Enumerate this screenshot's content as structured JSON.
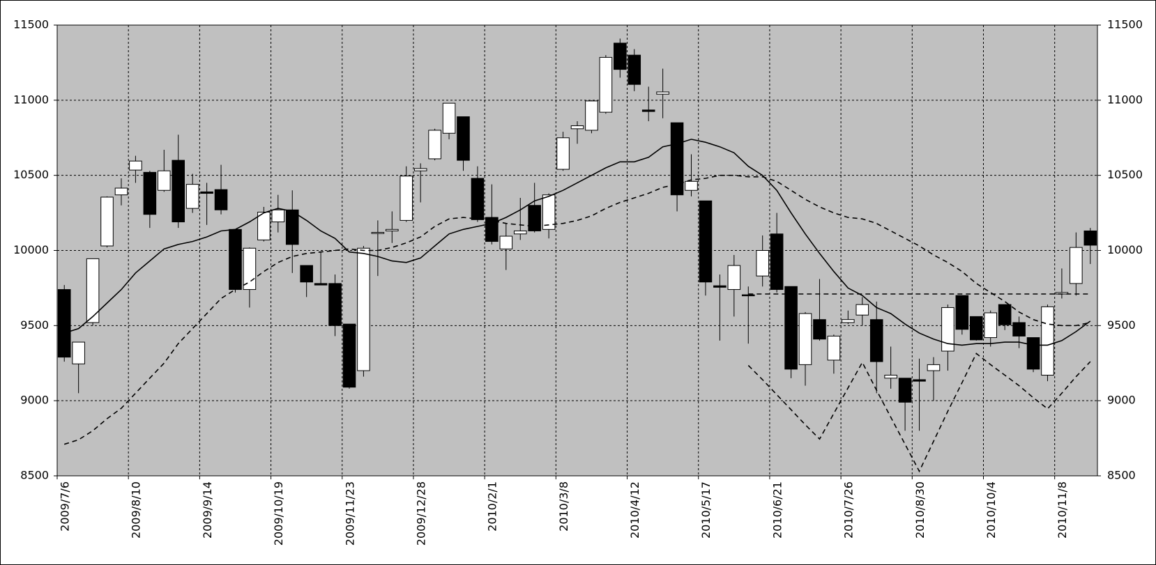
{
  "chart_data": {
    "type": "candlestick",
    "categories": [
      "2009/7/6",
      null,
      null,
      null,
      null,
      "2009/8/10",
      null,
      null,
      null,
      null,
      "2009/9/14",
      null,
      null,
      null,
      null,
      "2009/10/19",
      null,
      null,
      null,
      null,
      "2009/11/23",
      null,
      null,
      null,
      null,
      "2009/12/28",
      null,
      null,
      null,
      null,
      "2010/2/1",
      null,
      null,
      null,
      null,
      "2010/3/8",
      null,
      null,
      null,
      null,
      "2010/4/12",
      null,
      null,
      null,
      null,
      "2010/5/17",
      null,
      null,
      null,
      null,
      "2010/6/21",
      null,
      null,
      null,
      null,
      "2010/7/26",
      null,
      null,
      null,
      null,
      "2010/8/30",
      null,
      null,
      null,
      null,
      "2010/10/4",
      null,
      null,
      null,
      null,
      "2010/11/8",
      null,
      null
    ],
    "open": [
      9740,
      9245,
      9520,
      10030,
      10370,
      10535,
      10520,
      10400,
      10600,
      10280,
      10390,
      10405,
      10140,
      9740,
      10070,
      10190,
      10270,
      9900,
      9780,
      9780,
      9510,
      9200,
      10115,
      10130,
      10200,
      10530,
      10610,
      10780,
      10890,
      10480,
      10220,
      10010,
      10110,
      10300,
      10140,
      10540,
      10810,
      10800,
      10920,
      11380,
      11300,
      10935,
      11040,
      10850,
      10400,
      10330,
      9765,
      9740,
      9705,
      9830,
      10110,
      9760,
      9240,
      9540,
      9270,
      9520,
      9570,
      9540,
      9150,
      9150,
      9140,
      9200,
      9330,
      9700,
      9560,
      9420,
      9640,
      9520,
      9420,
      9170,
      9710,
      9780,
      10130
    ],
    "high": [
      9770,
      9390,
      9945,
      10360,
      10480,
      10630,
      10530,
      10670,
      10770,
      10510,
      10450,
      10570,
      10140,
      10020,
      10290,
      10370,
      10400,
      9900,
      9990,
      9840,
      9510,
      10030,
      10200,
      10260,
      10560,
      10580,
      10810,
      10980,
      10890,
      10560,
      10440,
      10180,
      10350,
      10450,
      10380,
      10790,
      10860,
      11000,
      11300,
      11410,
      11340,
      11090,
      11210,
      10850,
      10640,
      10330,
      9840,
      9970,
      9760,
      10100,
      10250,
      9760,
      9590,
      9810,
      9440,
      9600,
      9690,
      9660,
      9360,
      9150,
      9280,
      9290,
      9640,
      9700,
      9560,
      9600,
      9640,
      9560,
      9420,
      9640,
      9880,
      10120,
      10150
    ],
    "low": [
      9260,
      9050,
      9500,
      10020,
      10300,
      10450,
      10150,
      10390,
      10150,
      10250,
      10170,
      10240,
      9720,
      9620,
      10060,
      10120,
      9850,
      9690,
      9770,
      9430,
      9080,
      9160,
      9830,
      10050,
      10190,
      10320,
      10600,
      10740,
      10530,
      10190,
      10040,
      9870,
      10070,
      10120,
      10080,
      10530,
      10710,
      10780,
      10910,
      11150,
      11060,
      10860,
      10880,
      10260,
      10360,
      9700,
      9400,
      9560,
      9380,
      9760,
      9720,
      9150,
      9100,
      9400,
      9180,
      9510,
      9500,
      9050,
      9080,
      8800,
      8800,
      9000,
      9200,
      9440,
      9400,
      9360,
      9470,
      9350,
      9190,
      9130,
      9680,
      9700,
      9910
    ],
    "close": [
      9290,
      9390,
      9945,
      10355,
      10415,
      10595,
      10240,
      10530,
      10190,
      10440,
      10380,
      10270,
      9740,
      10015,
      10255,
      10270,
      10040,
      9790,
      9770,
      9500,
      9090,
      10015,
      10120,
      10140,
      10495,
      10545,
      10800,
      10980,
      10600,
      10205,
      10060,
      10095,
      10130,
      10130,
      10370,
      10750,
      10830,
      10995,
      11285,
      11205,
      11105,
      10925,
      11055,
      10370,
      10460,
      9790,
      9755,
      9900,
      9700,
      10000,
      9740,
      9210,
      9580,
      9410,
      9430,
      9540,
      9640,
      9260,
      9170,
      8990,
      9130,
      9240,
      9620,
      9475,
      9405,
      9585,
      9505,
      9430,
      9210,
      9625,
      9720,
      10020,
      10035
    ],
    "up_color": "#ffffff",
    "down_color": "#000000",
    "plot_background": "#c0c0c0",
    "lines": [
      {
        "color": "#000000",
        "dashed": false,
        "values": [
          9450,
          9480,
          9560,
          9650,
          9740,
          9850,
          9930,
          10010,
          10040,
          10060,
          10090,
          10130,
          10140,
          10190,
          10250,
          10280,
          10260,
          10200,
          10130,
          10080,
          9990,
          9980,
          9960,
          9930,
          9920,
          9950,
          10030,
          10110,
          10140,
          10160,
          10180,
          10220,
          10270,
          10330,
          10360,
          10400,
          10450,
          10500,
          10550,
          10590,
          10590,
          10620,
          10690,
          10710,
          10740,
          10720,
          10690,
          10650,
          10560,
          10500,
          10400,
          10250,
          10110,
          9980,
          9860,
          9750,
          9700,
          9620,
          9580,
          9510,
          9450,
          9410,
          9380,
          9370,
          9380,
          9380,
          9390,
          9390,
          9370,
          9370,
          9400,
          9460,
          9530
        ]
      },
      {
        "color": "#000000",
        "dashed": true,
        "values": [
          8710,
          8740,
          8800,
          8880,
          8950,
          9050,
          9150,
          9250,
          9380,
          9480,
          9580,
          9680,
          9740,
          9790,
          9860,
          9920,
          9960,
          9980,
          9990,
          10000,
          10010,
          10000,
          10000,
          10020,
          10050,
          10090,
          10160,
          10210,
          10220,
          10210,
          10200,
          10180,
          10170,
          10160,
          10170,
          10180,
          10200,
          10230,
          10280,
          10320,
          10350,
          10380,
          10420,
          10440,
          10470,
          10480,
          10500,
          10500,
          10490,
          10490,
          10460,
          10400,
          10340,
          10290,
          10250,
          10220,
          10210,
          10180,
          10130,
          10080,
          10030,
          9970,
          9920,
          9860,
          9780,
          9720,
          9660,
          9590,
          9540,
          9510,
          9500,
          9500,
          9520
        ]
      },
      {
        "color": "#000000",
        "dashed": true,
        "values": [
          null,
          null,
          null,
          null,
          null,
          null,
          null,
          null,
          null,
          null,
          null,
          null,
          null,
          null,
          null,
          null,
          null,
          null,
          null,
          null,
          null,
          null,
          null,
          null,
          null,
          null,
          null,
          null,
          null,
          null,
          null,
          null,
          null,
          null,
          null,
          null,
          null,
          null,
          null,
          null,
          null,
          null,
          null,
          null,
          null,
          null,
          null,
          null,
          9710,
          9710,
          9710,
          9710,
          9710,
          9710,
          9710,
          9710,
          9710,
          9710,
          9710,
          9710,
          9710,
          9710,
          9710,
          9710,
          9710,
          9710,
          9710,
          9710,
          9710,
          9710,
          9710,
          9710,
          9710
        ]
      },
      {
        "color": "#000000",
        "dashed": true,
        "values": [
          null,
          null,
          null,
          null,
          null,
          null,
          null,
          null,
          null,
          null,
          null,
          null,
          null,
          null,
          null,
          null,
          null,
          null,
          null,
          null,
          null,
          null,
          null,
          null,
          null,
          null,
          null,
          null,
          null,
          null,
          null,
          null,
          null,
          null,
          null,
          null,
          null,
          null,
          null,
          null,
          null,
          null,
          null,
          null,
          null,
          null,
          null,
          null,
          9235,
          9140,
          9040,
          8940,
          8840,
          8745,
          8915,
          9085,
          9255,
          9070,
          8890,
          8710,
          8530,
          8730,
          8930,
          9120,
          9314,
          9240,
          9170,
          9100,
          9020,
          8946,
          9050,
          9160,
          9260
        ]
      }
    ],
    "ylim": [
      8500,
      11500
    ],
    "yticks": [
      8500,
      9000,
      9500,
      10000,
      10500,
      11000,
      11500
    ],
    "y2lim": [
      8500,
      11500
    ],
    "y2ticks": [
      8500,
      9000,
      9500,
      10000,
      10500,
      11000,
      11500
    ],
    "grid": true
  }
}
